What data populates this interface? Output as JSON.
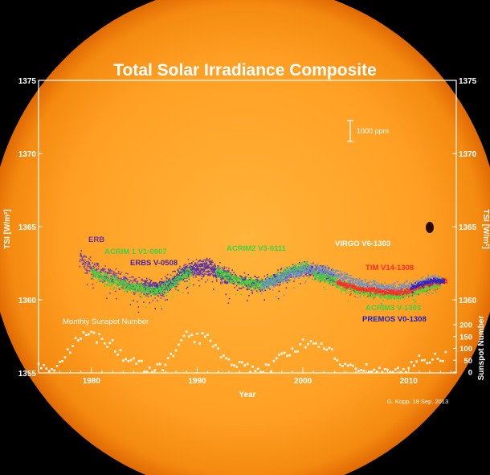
{
  "chart_data": {
    "type": "scatter",
    "title": "Total Solar Irradiance Composite",
    "xlabel": "Year",
    "ylabel_left": "TSI  [W/m²]",
    "ylabel_right_tsi": "TSI  [W/m²]",
    "ylabel_right_sunspot": "Sunspot Number",
    "xlim": [
      1975,
      2014.5
    ],
    "ylim": [
      1355,
      1375
    ],
    "x_ticks": [
      "1980",
      "1990",
      "2000",
      "2010"
    ],
    "y_ticks_left": [
      "1355",
      "1360",
      "1365",
      "1370",
      "1375"
    ],
    "y_ticks_right": [
      "1360",
      "1365",
      "1370",
      "1375"
    ],
    "sunspot_ticks": [
      "0",
      "50",
      "100",
      "150",
      "200"
    ],
    "scale_bar_label": "1000 ppm",
    "sunspot_label": "Monthly  Sunspot  Number",
    "credit": "G. Kopp, 18 Sep. 2013",
    "colors": {
      "erb": "#6b3fb0",
      "acrim1": "#3fd23f",
      "erbs": "#5030a8",
      "acrim2": "#3fd23f",
      "virgo": "#6a8fd0",
      "tim": "#ff2a2a",
      "acrim3": "#3fd23f",
      "premos": "#2828c8",
      "sunspots": "#ffffff"
    },
    "series": [
      {
        "name": "ERB",
        "label_color": "#6b2fb0",
        "x": [
          1978.9,
          1979.5,
          1980.2,
          1981.0,
          1982.0,
          1983.0,
          1984.0,
          1985.0,
          1986.0,
          1987.0,
          1988.0,
          1989.0,
          1990.0,
          1991.0,
          1992.0,
          1993.0
        ],
        "y": [
          1363.0,
          1362.4,
          1362.0,
          1361.8,
          1361.5,
          1361.3,
          1361.0,
          1360.8,
          1360.7,
          1360.9,
          1361.4,
          1362.0,
          1362.1,
          1362.2,
          1361.9,
          1361.6
        ]
      },
      {
        "name": "ACRIM 1  V1-0907",
        "label_color": "#3fd23f",
        "x": [
          1980.0,
          1980.5,
          1981.0,
          1981.5,
          1982.0,
          1982.5,
          1983.0,
          1983.5,
          1984.0,
          1984.5,
          1985.0,
          1985.5,
          1986.0,
          1986.5,
          1987.0,
          1987.5,
          1988.0,
          1988.5,
          1989.0,
          1989.5
        ],
        "y": [
          1361.9,
          1361.7,
          1361.6,
          1361.4,
          1361.3,
          1361.2,
          1361.0,
          1360.9,
          1360.9,
          1360.8,
          1360.7,
          1360.6,
          1360.6,
          1360.7,
          1360.8,
          1361.0,
          1361.3,
          1361.6,
          1361.8,
          1361.9
        ]
      },
      {
        "name": "ERBS  V-0508",
        "label_color": "#4a1fa0",
        "x": [
          1984.9,
          1986.0,
          1987.0,
          1988.0,
          1989.0,
          1990.0,
          1991.0,
          1992.0,
          1993.0,
          1994.0,
          1995.0,
          1996.0,
          1997.0,
          1998.0,
          1999.0,
          2000.0,
          2001.0,
          2002.0,
          2003.0
        ],
        "y": [
          1361.0,
          1360.8,
          1360.9,
          1361.4,
          1362.0,
          1362.1,
          1362.3,
          1361.8,
          1361.5,
          1361.3,
          1361.2,
          1361.1,
          1361.3,
          1361.6,
          1361.9,
          1362.1,
          1362.0,
          1361.8,
          1361.4
        ]
      },
      {
        "name": "ACRIM2  V3-0111",
        "label_color": "#3fd23f",
        "x": [
          1991.8,
          1992.5,
          1993.0,
          1993.5,
          1994.0,
          1994.5,
          1995.0,
          1995.5,
          1996.0,
          1996.5,
          1997.0,
          1997.5,
          1998.0,
          1998.5,
          1999.0,
          1999.5,
          2000.0,
          2000.5
        ],
        "y": [
          1362.0,
          1361.8,
          1361.6,
          1361.4,
          1361.3,
          1361.2,
          1361.1,
          1361.1,
          1361.0,
          1361.1,
          1361.3,
          1361.5,
          1361.7,
          1361.9,
          1362.1,
          1362.2,
          1362.3,
          1362.3
        ]
      },
      {
        "name": "VIRGO  V6-1303",
        "label_color": "#ffffff",
        "x": [
          1996.1,
          1997.0,
          1998.0,
          1999.0,
          2000.0,
          2001.0,
          2002.0,
          2003.0,
          2004.0,
          2005.0,
          2006.0,
          2007.0,
          2008.0,
          2009.0,
          2010.0,
          2011.0,
          2012.0,
          2013.0
        ],
        "y": [
          1361.0,
          1361.2,
          1361.5,
          1361.8,
          1362.0,
          1362.1,
          1362.0,
          1361.7,
          1361.4,
          1361.2,
          1361.0,
          1360.9,
          1360.8,
          1360.8,
          1360.9,
          1361.1,
          1361.3,
          1361.4
        ]
      },
      {
        "name": "TIM  V14-1308",
        "label_color": "#ff2a2a",
        "x": [
          2003.2,
          2004.0,
          2005.0,
          2006.0,
          2007.0,
          2008.0,
          2009.0,
          2010.0,
          2011.0,
          2012.0,
          2013.0,
          2013.6
        ],
        "y": [
          1361.2,
          1361.0,
          1360.8,
          1360.7,
          1360.6,
          1360.5,
          1360.5,
          1360.6,
          1360.9,
          1361.1,
          1361.3,
          1361.3
        ]
      },
      {
        "name": "ACRIM3  V-1303",
        "label_color": "#3fd23f",
        "x": [
          2001.0,
          2002.0,
          2003.0,
          2004.0,
          2005.0,
          2006.0,
          2007.0,
          2008.0,
          2009.0,
          2010.0,
          2011.0,
          2012.0,
          2013.0
        ],
        "y": [
          1361.7,
          1361.5,
          1361.2,
          1360.9,
          1360.7,
          1360.5,
          1360.4,
          1360.3,
          1360.3,
          1360.4,
          1360.7,
          1360.9,
          1361.1
        ]
      },
      {
        "name": "PREMOS  V0-1308",
        "label_color": "#2020c0",
        "x": [
          2010.2,
          2010.8,
          2011.3,
          2011.8,
          2012.3,
          2012.8,
          2013.4
        ],
        "y": [
          1360.8,
          1361.0,
          1361.1,
          1361.2,
          1361.3,
          1361.3,
          1361.3
        ]
      },
      {
        "name": "Monthly  Sunspot  Number",
        "label_color": "#ffffff",
        "x": [
          1975.0,
          1976.0,
          1977.0,
          1978.0,
          1979.0,
          1980.0,
          1981.0,
          1982.0,
          1983.0,
          1984.0,
          1985.0,
          1986.0,
          1987.0,
          1988.0,
          1989.0,
          1990.0,
          1991.0,
          1992.0,
          1993.0,
          1994.0,
          1995.0,
          1996.0,
          1997.0,
          1998.0,
          1999.0,
          2000.0,
          2001.0,
          2002.0,
          2003.0,
          2004.0,
          2005.0,
          2006.0,
          2007.0,
          2008.0,
          2009.0,
          2010.0,
          2011.0,
          2012.0,
          2013.0
        ],
        "y": [
          15,
          13,
          28,
          92,
          155,
          155,
          140,
          116,
          67,
          46,
          18,
          14,
          29,
          100,
          158,
          142,
          146,
          94,
          55,
          30,
          18,
          9,
          21,
          64,
          93,
          120,
          111,
          104,
          64,
          40,
          30,
          15,
          8,
          3,
          3,
          16,
          56,
          57,
          64
        ]
      }
    ]
  }
}
